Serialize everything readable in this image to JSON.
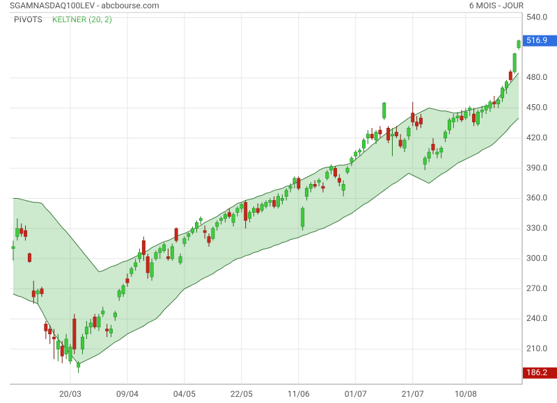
{
  "chart_data": {
    "type": "candlestick",
    "title": "SGAMNASDAQ100LEV - abcbourse.com",
    "subtitle": "6 MOIS - JOUR",
    "legend": [
      "PIVOTS",
      "KELTNER (20, 2)"
    ],
    "up_color": "#3dcc3d",
    "down_color": "#c8261a",
    "band_color": "#4caf50",
    "grid": true,
    "last_price": 516.9,
    "low_price": 186.2,
    "ylim": [
      175,
      545
    ],
    "yticks": [
      {
        "value": 210,
        "label": "210.0"
      },
      {
        "value": 240,
        "label": "240.0"
      },
      {
        "value": 270,
        "label": "270.0"
      },
      {
        "value": 300,
        "label": "300.0"
      },
      {
        "value": 330,
        "label": "330.0"
      },
      {
        "value": 360,
        "label": "360.0"
      },
      {
        "value": 390,
        "label": "390.0"
      },
      {
        "value": 420,
        "label": "420.0"
      },
      {
        "value": 450,
        "label": "450.0"
      },
      {
        "value": 480,
        "label": "480.0"
      },
      {
        "value": 540,
        "label": "540.0"
      }
    ],
    "categories": [
      null,
      null,
      null,
      null,
      null,
      null,
      null,
      null,
      null,
      null,
      null,
      null,
      null,
      null,
      "20/03",
      null,
      null,
      null,
      null,
      null,
      null,
      null,
      null,
      null,
      null,
      null,
      null,
      null,
      "09/04",
      null,
      null,
      null,
      null,
      null,
      null,
      null,
      null,
      null,
      null,
      null,
      null,
      null,
      "04/05",
      null,
      null,
      null,
      null,
      null,
      null,
      null,
      null,
      null,
      null,
      null,
      null,
      null,
      "22/05",
      null,
      null,
      null,
      null,
      null,
      null,
      null,
      null,
      null,
      null,
      null,
      null,
      null,
      "11/06",
      null,
      null,
      null,
      null,
      null,
      null,
      null,
      null,
      null,
      null,
      null,
      null,
      null,
      "01/07",
      null,
      null,
      null,
      null,
      null,
      null,
      null,
      null,
      null,
      null,
      null,
      null,
      null,
      "21/07",
      null,
      null,
      null,
      null,
      null,
      null,
      null,
      null,
      null,
      null,
      null,
      null,
      "10/08",
      null,
      null,
      null,
      null,
      null,
      null,
      null,
      null,
      null,
      null,
      null,
      null,
      null
    ],
    "ohlc": [
      [
        310,
        318,
        298,
        312
      ],
      [
        322,
        340,
        318,
        330
      ],
      [
        330,
        335,
        322,
        325
      ],
      [
        328,
        333,
        318,
        322
      ],
      [
        305,
        306,
        296,
        297
      ],
      [
        268,
        278,
        255,
        262
      ],
      [
        265,
        270,
        255,
        268
      ],
      [
        270,
        272,
        262,
        265
      ],
      [
        235,
        238,
        220,
        228
      ],
      [
        230,
        234,
        215,
        225
      ],
      [
        222,
        230,
        200,
        220
      ],
      [
        210,
        225,
        198,
        218
      ],
      [
        213,
        218,
        196,
        203
      ],
      [
        205,
        225,
        200,
        220
      ],
      [
        198,
        215,
        195,
        212
      ],
      [
        240,
        245,
        205,
        210
      ],
      [
        192,
        198,
        186.2,
        196
      ],
      [
        210,
        225,
        205,
        222
      ],
      [
        225,
        238,
        220,
        232
      ],
      [
        232,
        240,
        225,
        236
      ],
      [
        242,
        245,
        230,
        232
      ],
      [
        232,
        245,
        228,
        242
      ],
      [
        245,
        252,
        242,
        248
      ],
      [
        230,
        235,
        222,
        228
      ],
      [
        226,
        234,
        222,
        230
      ],
      [
        242,
        248,
        238,
        246
      ],
      [
        262,
        270,
        258,
        268
      ],
      [
        265,
        275,
        262,
        273
      ],
      [
        280,
        285,
        272,
        276
      ],
      [
        285,
        292,
        282,
        290
      ],
      [
        292,
        300,
        288,
        296
      ],
      [
        300,
        310,
        296,
        306
      ],
      [
        318,
        322,
        298,
        304
      ],
      [
        302,
        305,
        280,
        286
      ],
      [
        282,
        300,
        278,
        296
      ],
      [
        300,
        308,
        298,
        306
      ],
      [
        306,
        312,
        300,
        310
      ],
      [
        308,
        316,
        306,
        314
      ],
      [
        302,
        310,
        298,
        300
      ],
      [
        300,
        315,
        298,
        312
      ],
      [
        330,
        331,
        316,
        318
      ],
      [
        296,
        305,
        294,
        302
      ],
      [
        315,
        322,
        312,
        320
      ],
      [
        322,
        326,
        318,
        325
      ],
      [
        326,
        332,
        324,
        330
      ],
      [
        330,
        338,
        326,
        336
      ],
      [
        338,
        342,
        334,
        340
      ],
      [
        328,
        333,
        320,
        326
      ],
      [
        322,
        325,
        312,
        316
      ],
      [
        320,
        332,
        318,
        330
      ],
      [
        332,
        338,
        328,
        336
      ],
      [
        338,
        342,
        334,
        340
      ],
      [
        340,
        346,
        336,
        344
      ],
      [
        346,
        350,
        340,
        342
      ],
      [
        336,
        346,
        332,
        344
      ],
      [
        346,
        352,
        342,
        350
      ],
      [
        350,
        356,
        346,
        354
      ],
      [
        356,
        358,
        330,
        338
      ],
      [
        340,
        348,
        336,
        346
      ],
      [
        346,
        352,
        342,
        350
      ],
      [
        350,
        355,
        344,
        346
      ],
      [
        348,
        356,
        346,
        354
      ],
      [
        352,
        358,
        350,
        356
      ],
      [
        356,
        360,
        352,
        358
      ],
      [
        358,
        362,
        350,
        352
      ],
      [
        352,
        365,
        350,
        362
      ],
      [
        358,
        364,
        354,
        360
      ],
      [
        362,
        370,
        358,
        368
      ],
      [
        370,
        375,
        366,
        372
      ],
      [
        375,
        382,
        370,
        380
      ],
      [
        380,
        382,
        368,
        370
      ],
      [
        332,
        352,
        328,
        350
      ],
      [
        362,
        372,
        358,
        370
      ],
      [
        370,
        376,
        366,
        374
      ],
      [
        374,
        378,
        370,
        372
      ],
      [
        376,
        380,
        372,
        378
      ],
      [
        372,
        376,
        366,
        370
      ],
      [
        380,
        388,
        378,
        386
      ],
      [
        388,
        394,
        384,
        392
      ],
      [
        390,
        392,
        380,
        382
      ],
      [
        380,
        384,
        372,
        376
      ],
      [
        368,
        378,
        362,
        374
      ],
      [
        386,
        392,
        384,
        390
      ],
      [
        396,
        402,
        392,
        400
      ],
      [
        402,
        408,
        398,
        406
      ],
      [
        406,
        410,
        402,
        408
      ],
      [
        410,
        420,
        406,
        418
      ],
      [
        420,
        428,
        414,
        424
      ],
      [
        424,
        430,
        418,
        420
      ],
      [
        418,
        428,
        414,
        426
      ],
      [
        428,
        432,
        420,
        424
      ],
      [
        440,
        456,
        438,
        455
      ],
      [
        430,
        432,
        415,
        418
      ],
      [
        422,
        430,
        402,
        424
      ],
      [
        426,
        432,
        420,
        422
      ],
      [
        418,
        424,
        410,
        412
      ],
      [
        410,
        420,
        406,
        418
      ],
      [
        422,
        432,
        418,
        430
      ],
      [
        445,
        456,
        432,
        436
      ],
      [
        436,
        442,
        428,
        432
      ],
      [
        440,
        444,
        430,
        434
      ],
      [
        394,
        402,
        388,
        400
      ],
      [
        400,
        410,
        396,
        406
      ],
      [
        414,
        420,
        404,
        408
      ],
      [
        404,
        410,
        400,
        406
      ],
      [
        406,
        412,
        400,
        410
      ],
      [
        420,
        428,
        416,
        426
      ],
      [
        428,
        440,
        424,
        438
      ],
      [
        436,
        444,
        430,
        440
      ],
      [
        440,
        446,
        436,
        442
      ],
      [
        442,
        448,
        436,
        438
      ],
      [
        440,
        450,
        438,
        446
      ],
      [
        448,
        452,
        442,
        450
      ],
      [
        444,
        450,
        432,
        436
      ],
      [
        434,
        448,
        432,
        446
      ],
      [
        446,
        452,
        440,
        448
      ],
      [
        448,
        454,
        444,
        452
      ],
      [
        450,
        458,
        446,
        456
      ],
      [
        456,
        462,
        450,
        454
      ],
      [
        454,
        460,
        450,
        458
      ],
      [
        460,
        472,
        456,
        470
      ],
      [
        470,
        478,
        464,
        476
      ],
      [
        486,
        488,
        476,
        478
      ],
      [
        486,
        505,
        484,
        504
      ],
      [
        510,
        518,
        508,
        516.9
      ]
    ],
    "upper": [
      360,
      360,
      359,
      358,
      357,
      356,
      356,
      355,
      350,
      346,
      341,
      336,
      331,
      327,
      322,
      317,
      312,
      307,
      302,
      297,
      292,
      287,
      288,
      290,
      292,
      293,
      295,
      297,
      298,
      300,
      302,
      304,
      306,
      308,
      311,
      313,
      315,
      317,
      318,
      320,
      322,
      324,
      325,
      327,
      329,
      331,
      333,
      336,
      338,
      340,
      342,
      345,
      347,
      350,
      352,
      355,
      356,
      358,
      359,
      360,
      362,
      363,
      365,
      366,
      368,
      369,
      370,
      372,
      373,
      375,
      377,
      379,
      381,
      383,
      385,
      388,
      390,
      391,
      391,
      392,
      393,
      393,
      394,
      395,
      399,
      402,
      406,
      409,
      413,
      416,
      420,
      423,
      426,
      429,
      431,
      434,
      437,
      440,
      442,
      444,
      446,
      448,
      450,
      449,
      448,
      447,
      447,
      446,
      445,
      445,
      446,
      447,
      448,
      449,
      450,
      451,
      452,
      453,
      455,
      460,
      465,
      470,
      475,
      480,
      485
    ],
    "lower": [
      265,
      263,
      262,
      260,
      258,
      257,
      255,
      248,
      240,
      233,
      225,
      220,
      215,
      210,
      205,
      200,
      195,
      197,
      199,
      201,
      203,
      205,
      208,
      211,
      214,
      217,
      219,
      222,
      225,
      227,
      229,
      231,
      233,
      236,
      238,
      240,
      244,
      249,
      253,
      257,
      261,
      266,
      270,
      272,
      274,
      276,
      279,
      281,
      283,
      285,
      288,
      290,
      293,
      295,
      298,
      300,
      301,
      303,
      304,
      306,
      307,
      309,
      310,
      311,
      313,
      314,
      316,
      317,
      319,
      320,
      321,
      323,
      324,
      326,
      327,
      329,
      330,
      332,
      334,
      336,
      338,
      341,
      343,
      345,
      348,
      351,
      354,
      356,
      359,
      362,
      365,
      368,
      371,
      374,
      376,
      379,
      382,
      385,
      383,
      381,
      379,
      377,
      375,
      378,
      381,
      384,
      386,
      389,
      392,
      395,
      397,
      399,
      401,
      403,
      405,
      408,
      410,
      412,
      415,
      419,
      423,
      427,
      432,
      436,
      440
    ]
  }
}
